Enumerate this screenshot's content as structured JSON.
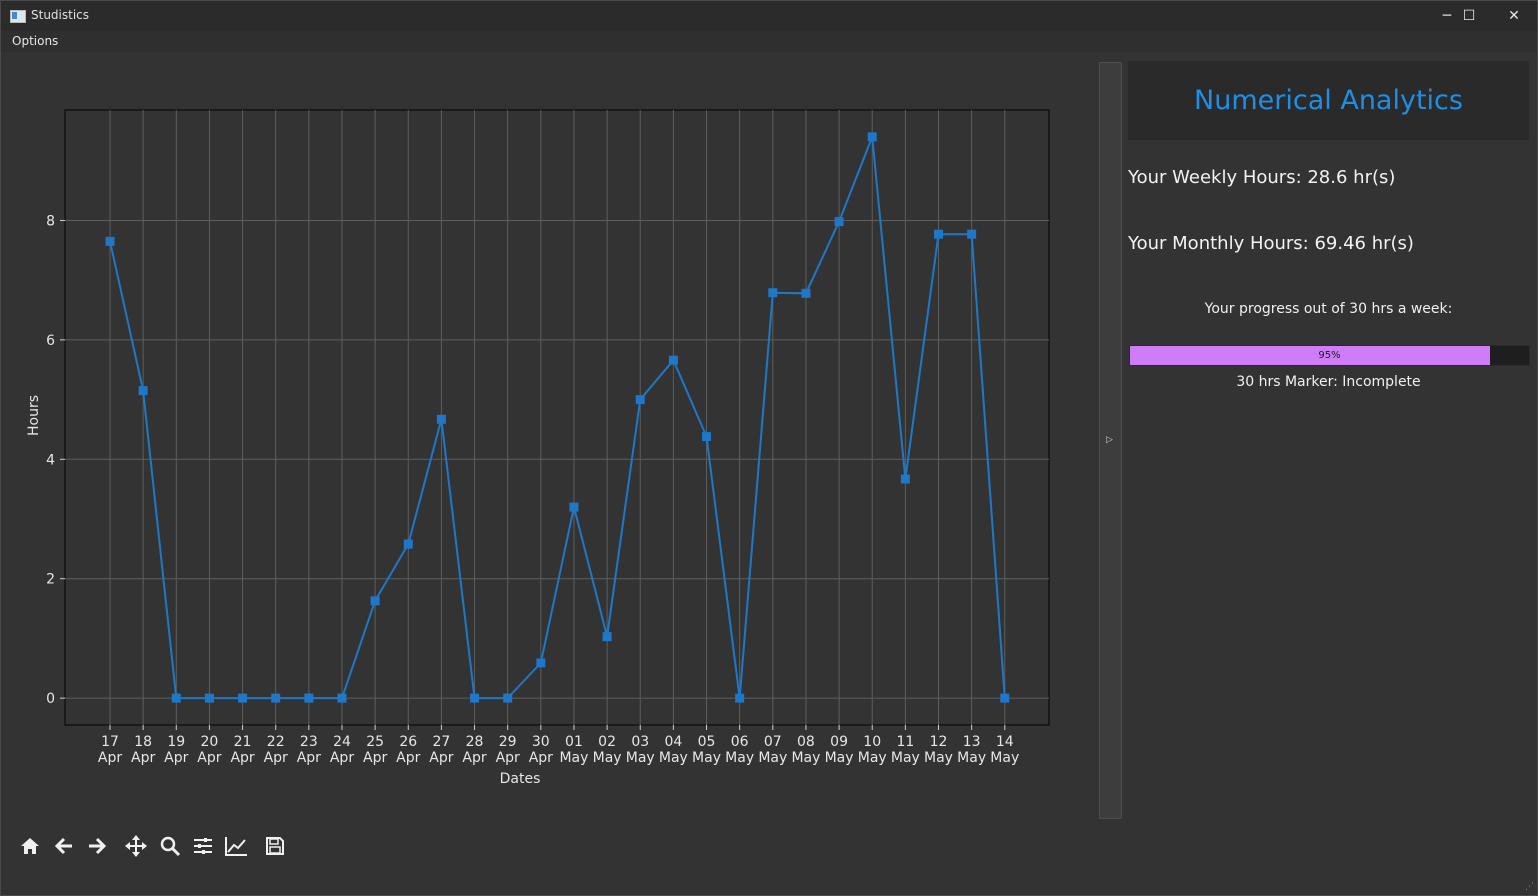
{
  "window": {
    "title": "Studistics",
    "controls": {
      "minimize": "─",
      "maximize": "☐",
      "close": "✕"
    }
  },
  "menu": {
    "options_label": "Options"
  },
  "toolbar": {
    "icons": [
      "home-icon",
      "back-icon",
      "forward-icon",
      "pan-icon",
      "zoom-icon",
      "configure-subplots-icon",
      "edit-axis-icon",
      "save-icon"
    ]
  },
  "panel": {
    "title": "Numerical Analytics",
    "weekly": "Your Weekly Hours: 28.6 hr(s)",
    "monthly": "Your Monthly Hours: 69.46 hr(s)",
    "progress_label": "Your progress out of 30 hrs a week:",
    "progress_value": 95,
    "progress_text": "95%",
    "marker": "30 hrs Marker: Incomplete",
    "title_color": "#1e8fe5",
    "bar_color": "#cf7cf7"
  },
  "chart_data": {
    "type": "line",
    "xlabel": "Dates",
    "ylabel": "Hours",
    "marker": "square",
    "line_color": "#1f77c8",
    "grid": true,
    "ylim": [
      -0.45,
      9.85
    ],
    "yticks": [
      0,
      2,
      4,
      6,
      8
    ],
    "categories": [
      [
        "17",
        "Apr"
      ],
      [
        "18",
        "Apr"
      ],
      [
        "19",
        "Apr"
      ],
      [
        "20",
        "Apr"
      ],
      [
        "21",
        "Apr"
      ],
      [
        "22",
        "Apr"
      ],
      [
        "23",
        "Apr"
      ],
      [
        "24",
        "Apr"
      ],
      [
        "25",
        "Apr"
      ],
      [
        "26",
        "Apr"
      ],
      [
        "27",
        "Apr"
      ],
      [
        "28",
        "Apr"
      ],
      [
        "29",
        "Apr"
      ],
      [
        "30",
        "Apr"
      ],
      [
        "01",
        "May"
      ],
      [
        "02",
        "May"
      ],
      [
        "03",
        "May"
      ],
      [
        "04",
        "May"
      ],
      [
        "05",
        "May"
      ],
      [
        "06",
        "May"
      ],
      [
        "07",
        "May"
      ],
      [
        "08",
        "May"
      ],
      [
        "09",
        "May"
      ],
      [
        "10",
        "May"
      ],
      [
        "11",
        "May"
      ],
      [
        "12",
        "May"
      ],
      [
        "13",
        "May"
      ],
      [
        "14",
        "May"
      ]
    ],
    "values": [
      7.65,
      5.15,
      0,
      0,
      0,
      0,
      0,
      0,
      1.63,
      2.58,
      4.67,
      0,
      0,
      0.59,
      3.2,
      1.03,
      5.0,
      5.66,
      4.38,
      0,
      6.79,
      6.78,
      7.98,
      9.4,
      3.67,
      7.77,
      7.77,
      0
    ]
  }
}
